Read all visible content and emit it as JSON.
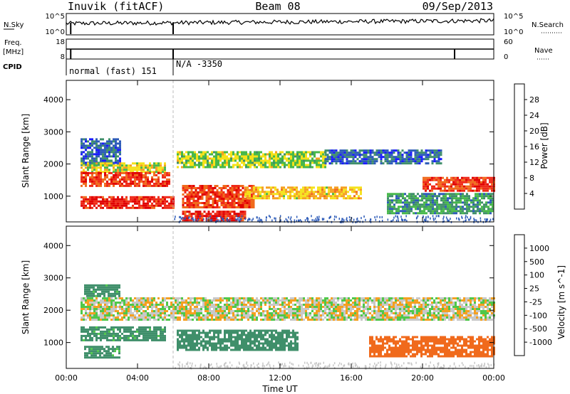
{
  "header": {
    "station": "Inuvik (fitACF)",
    "beam": "Beam 08",
    "date": "09/Sep/2013"
  },
  "nsky": {
    "left_label": "N.Sky",
    "left_ticks": [
      "10^5",
      "10^0"
    ],
    "right_ticks": [
      "10^5",
      "10^0"
    ],
    "right_label": "N.Search"
  },
  "freq": {
    "left_label_1": "Freq.",
    "left_label_2": "[MHz]",
    "left_ticks": [
      "18",
      "8"
    ],
    "right_ticks": [
      "60",
      "0"
    ],
    "right_label": "Nave"
  },
  "cpid": {
    "label": "CPID",
    "segments": [
      "normal (fast) 151",
      "N/A -3350"
    ]
  },
  "axes": {
    "x_ticks": [
      "00:00",
      "04:00",
      "08:00",
      "12:00",
      "16:00",
      "20:00",
      "00:00"
    ],
    "x_label": "Time UT",
    "y_label": "Slant Range [km]",
    "y_ticks": [
      "1000",
      "2000",
      "3000",
      "4000"
    ]
  },
  "colors": {
    "power": [
      "#1a1aff",
      "#2d5bb8",
      "#3f8f6a",
      "#47b84a",
      "#f5e21a",
      "#f5a020",
      "#f06a1c",
      "#ef2a18",
      "#e00000"
    ],
    "velocity": [
      "#e00000",
      "#f06a1c",
      "#f5a020",
      "#c8c8c8",
      "#c8c8c8",
      "#4fc84a",
      "#3f8f6a",
      "#2d5bb8",
      "#1a3fbf"
    ]
  },
  "chart_data": [
    {
      "type": "heatmap",
      "panel": "power",
      "xlabel": "Time UT",
      "ylabel": "Slant Range [km]",
      "xlim": [
        0,
        24
      ],
      "ylim": [
        200,
        4600
      ],
      "colorbar": {
        "label": "Power [dB]",
        "ticks": [
          "28",
          "24",
          "20",
          "16",
          "12",
          "8",
          "4"
        ],
        "range": [
          0,
          32
        ]
      },
      "features": [
        {
          "x": [
            0.8,
            3.0
          ],
          "y": [
            2000,
            2800
          ],
          "value": 6
        },
        {
          "x": [
            0.8,
            5.5
          ],
          "y": [
            1750,
            2050
          ],
          "value": 16
        },
        {
          "x": [
            0.8,
            5.8
          ],
          "y": [
            1350,
            1750
          ],
          "value": 26
        },
        {
          "x": [
            0.8,
            6.0
          ],
          "y": [
            650,
            1000
          ],
          "value": 28
        },
        {
          "x": [
            6.2,
            14.5
          ],
          "y": [
            1900,
            2400
          ],
          "value": 14
        },
        {
          "x": [
            6.5,
            10.5
          ],
          "y": [
            650,
            1350
          ],
          "value": 26
        },
        {
          "x": [
            6.5,
            10.0
          ],
          "y": [
            250,
            550
          ],
          "value": 28
        },
        {
          "x": [
            10.0,
            16.5
          ],
          "y": [
            950,
            1300
          ],
          "value": 18
        },
        {
          "x": [
            14.5,
            21.0
          ],
          "y": [
            2000,
            2450
          ],
          "value": 6
        },
        {
          "x": [
            20.0,
            24.0
          ],
          "y": [
            1200,
            1600
          ],
          "value": 26
        },
        {
          "x": [
            18.0,
            24.0
          ],
          "y": [
            500,
            1100
          ],
          "value": 10
        }
      ]
    },
    {
      "type": "heatmap",
      "panel": "velocity",
      "xlabel": "Time UT",
      "ylabel": "Slant Range [km]",
      "xlim": [
        0,
        24
      ],
      "ylim": [
        200,
        4600
      ],
      "colorbar": {
        "label": "Velocity [m s^-1]",
        "ticks": [
          "1000",
          "500",
          "100",
          "25",
          "-25",
          "-100",
          "-500",
          "-1000"
        ]
      },
      "features": [
        {
          "x": [
            1.0,
            3.0
          ],
          "y": [
            2450,
            2800
          ],
          "value": 150
        },
        {
          "x": [
            0.8,
            24.0
          ],
          "y": [
            1700,
            2400
          ],
          "value": 0
        },
        {
          "x": [
            0.8,
            5.5
          ],
          "y": [
            1100,
            1500
          ],
          "value": 150
        },
        {
          "x": [
            6.2,
            13.0
          ],
          "y": [
            800,
            1400
          ],
          "value": 300
        },
        {
          "x": [
            17.0,
            24.0
          ],
          "y": [
            600,
            1200
          ],
          "value": -250
        },
        {
          "x": [
            1.0,
            3.0
          ],
          "y": [
            550,
            900
          ],
          "value": 150
        }
      ]
    }
  ]
}
